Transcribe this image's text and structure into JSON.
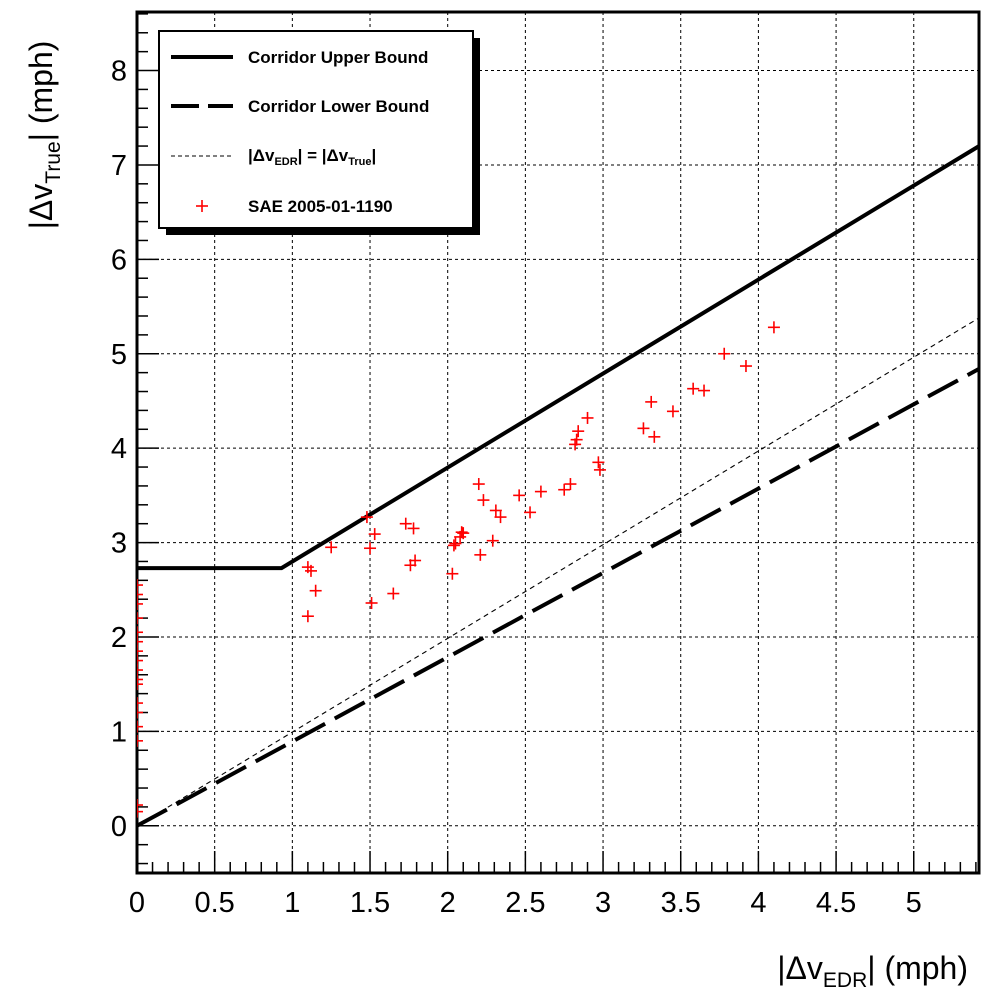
{
  "chart_data": {
    "type": "line",
    "title": "",
    "xlabel": {
      "prefix": "|Δv",
      "sub": "EDR",
      "suffix": "| (mph)"
    },
    "ylabel": {
      "prefix": "|Δv",
      "sub": "True",
      "suffix": "| (mph)"
    },
    "xlim": [
      0,
      5.42
    ],
    "ylim": [
      -0.5,
      8.62
    ],
    "x_ticks": [
      0,
      0.5,
      1,
      1.5,
      2,
      2.5,
      3,
      3.5,
      4,
      4.5,
      5
    ],
    "x_tick_labels": [
      "0",
      "0.5",
      "1",
      "1.5",
      "2",
      "2.5",
      "3",
      "3.5",
      "4",
      "4.5",
      "5"
    ],
    "y_ticks": [
      0,
      1,
      2,
      3,
      4,
      5,
      6,
      7,
      8
    ],
    "y_tick_labels": [
      "0",
      "1",
      "2",
      "3",
      "4",
      "5",
      "6",
      "7",
      "8"
    ],
    "grid": true,
    "legend_position": "top-left",
    "series": [
      {
        "name": "Corridor Upper Bound",
        "style": "solid",
        "color": "#000000",
        "points": [
          [
            0,
            2.73
          ],
          [
            0.93,
            2.73
          ],
          [
            5.42,
            7.2
          ]
        ]
      },
      {
        "name": "Corridor Lower Bound",
        "style": "long-dash",
        "color": "#000000",
        "points": [
          [
            0,
            0
          ],
          [
            5.42,
            4.84
          ]
        ]
      },
      {
        "name": {
          "p1": "|Δv",
          "s1": "EDR",
          "p2": "| = |Δv",
          "s2": "True",
          "p3": "|"
        },
        "style": "short-dash",
        "color": "#000000",
        "points": [
          [
            0,
            0
          ],
          [
            5.42,
            5.38
          ]
        ]
      },
      {
        "name": "SAE 2005-01-1190",
        "style": "markers",
        "marker": "+",
        "color": "#ff0000",
        "points": [
          [
            0,
            0.15
          ],
          [
            0,
            0.22
          ],
          [
            0,
            0.9
          ],
          [
            0,
            1.05
          ],
          [
            0,
            1.2
          ],
          [
            0,
            1.3
          ],
          [
            0,
            1.5
          ],
          [
            0,
            1.55
          ],
          [
            0,
            1.65
          ],
          [
            0,
            1.75
          ],
          [
            0,
            1.85
          ],
          [
            0,
            1.95
          ],
          [
            0,
            2.05
          ],
          [
            0,
            2.2
          ],
          [
            0,
            2.35
          ],
          [
            0,
            2.45
          ],
          [
            0,
            2.55
          ],
          [
            1.1,
            2.22
          ],
          [
            1.1,
            2.74
          ],
          [
            1.12,
            2.7
          ],
          [
            1.15,
            2.49
          ],
          [
            1.25,
            2.95
          ],
          [
            1.48,
            3.27
          ],
          [
            1.5,
            2.94
          ],
          [
            1.51,
            2.36
          ],
          [
            1.53,
            3.09
          ],
          [
            1.65,
            2.46
          ],
          [
            1.73,
            3.2
          ],
          [
            1.76,
            2.76
          ],
          [
            1.78,
            3.15
          ],
          [
            1.79,
            2.81
          ],
          [
            2.03,
            2.67
          ],
          [
            2.04,
            2.97
          ],
          [
            2.05,
            2.99
          ],
          [
            2.08,
            3.06
          ],
          [
            2.09,
            3.11
          ],
          [
            2.1,
            3.1
          ],
          [
            2.2,
            3.62
          ],
          [
            2.21,
            2.87
          ],
          [
            2.23,
            3.45
          ],
          [
            2.29,
            3.02
          ],
          [
            2.31,
            3.34
          ],
          [
            2.34,
            3.27
          ],
          [
            2.46,
            3.5
          ],
          [
            2.53,
            3.32
          ],
          [
            2.6,
            3.54
          ],
          [
            2.75,
            3.56
          ],
          [
            2.79,
            3.62
          ],
          [
            2.82,
            4.04
          ],
          [
            2.83,
            4.09
          ],
          [
            2.84,
            4.18
          ],
          [
            2.9,
            4.32
          ],
          [
            2.97,
            3.85
          ],
          [
            2.98,
            3.77
          ],
          [
            3.26,
            4.21
          ],
          [
            3.31,
            4.49
          ],
          [
            3.33,
            4.12
          ],
          [
            3.45,
            4.39
          ],
          [
            3.58,
            4.63
          ],
          [
            3.65,
            4.61
          ],
          [
            3.78,
            5.0
          ],
          [
            3.92,
            4.87
          ],
          [
            4.1,
            5.28
          ]
        ]
      }
    ]
  }
}
